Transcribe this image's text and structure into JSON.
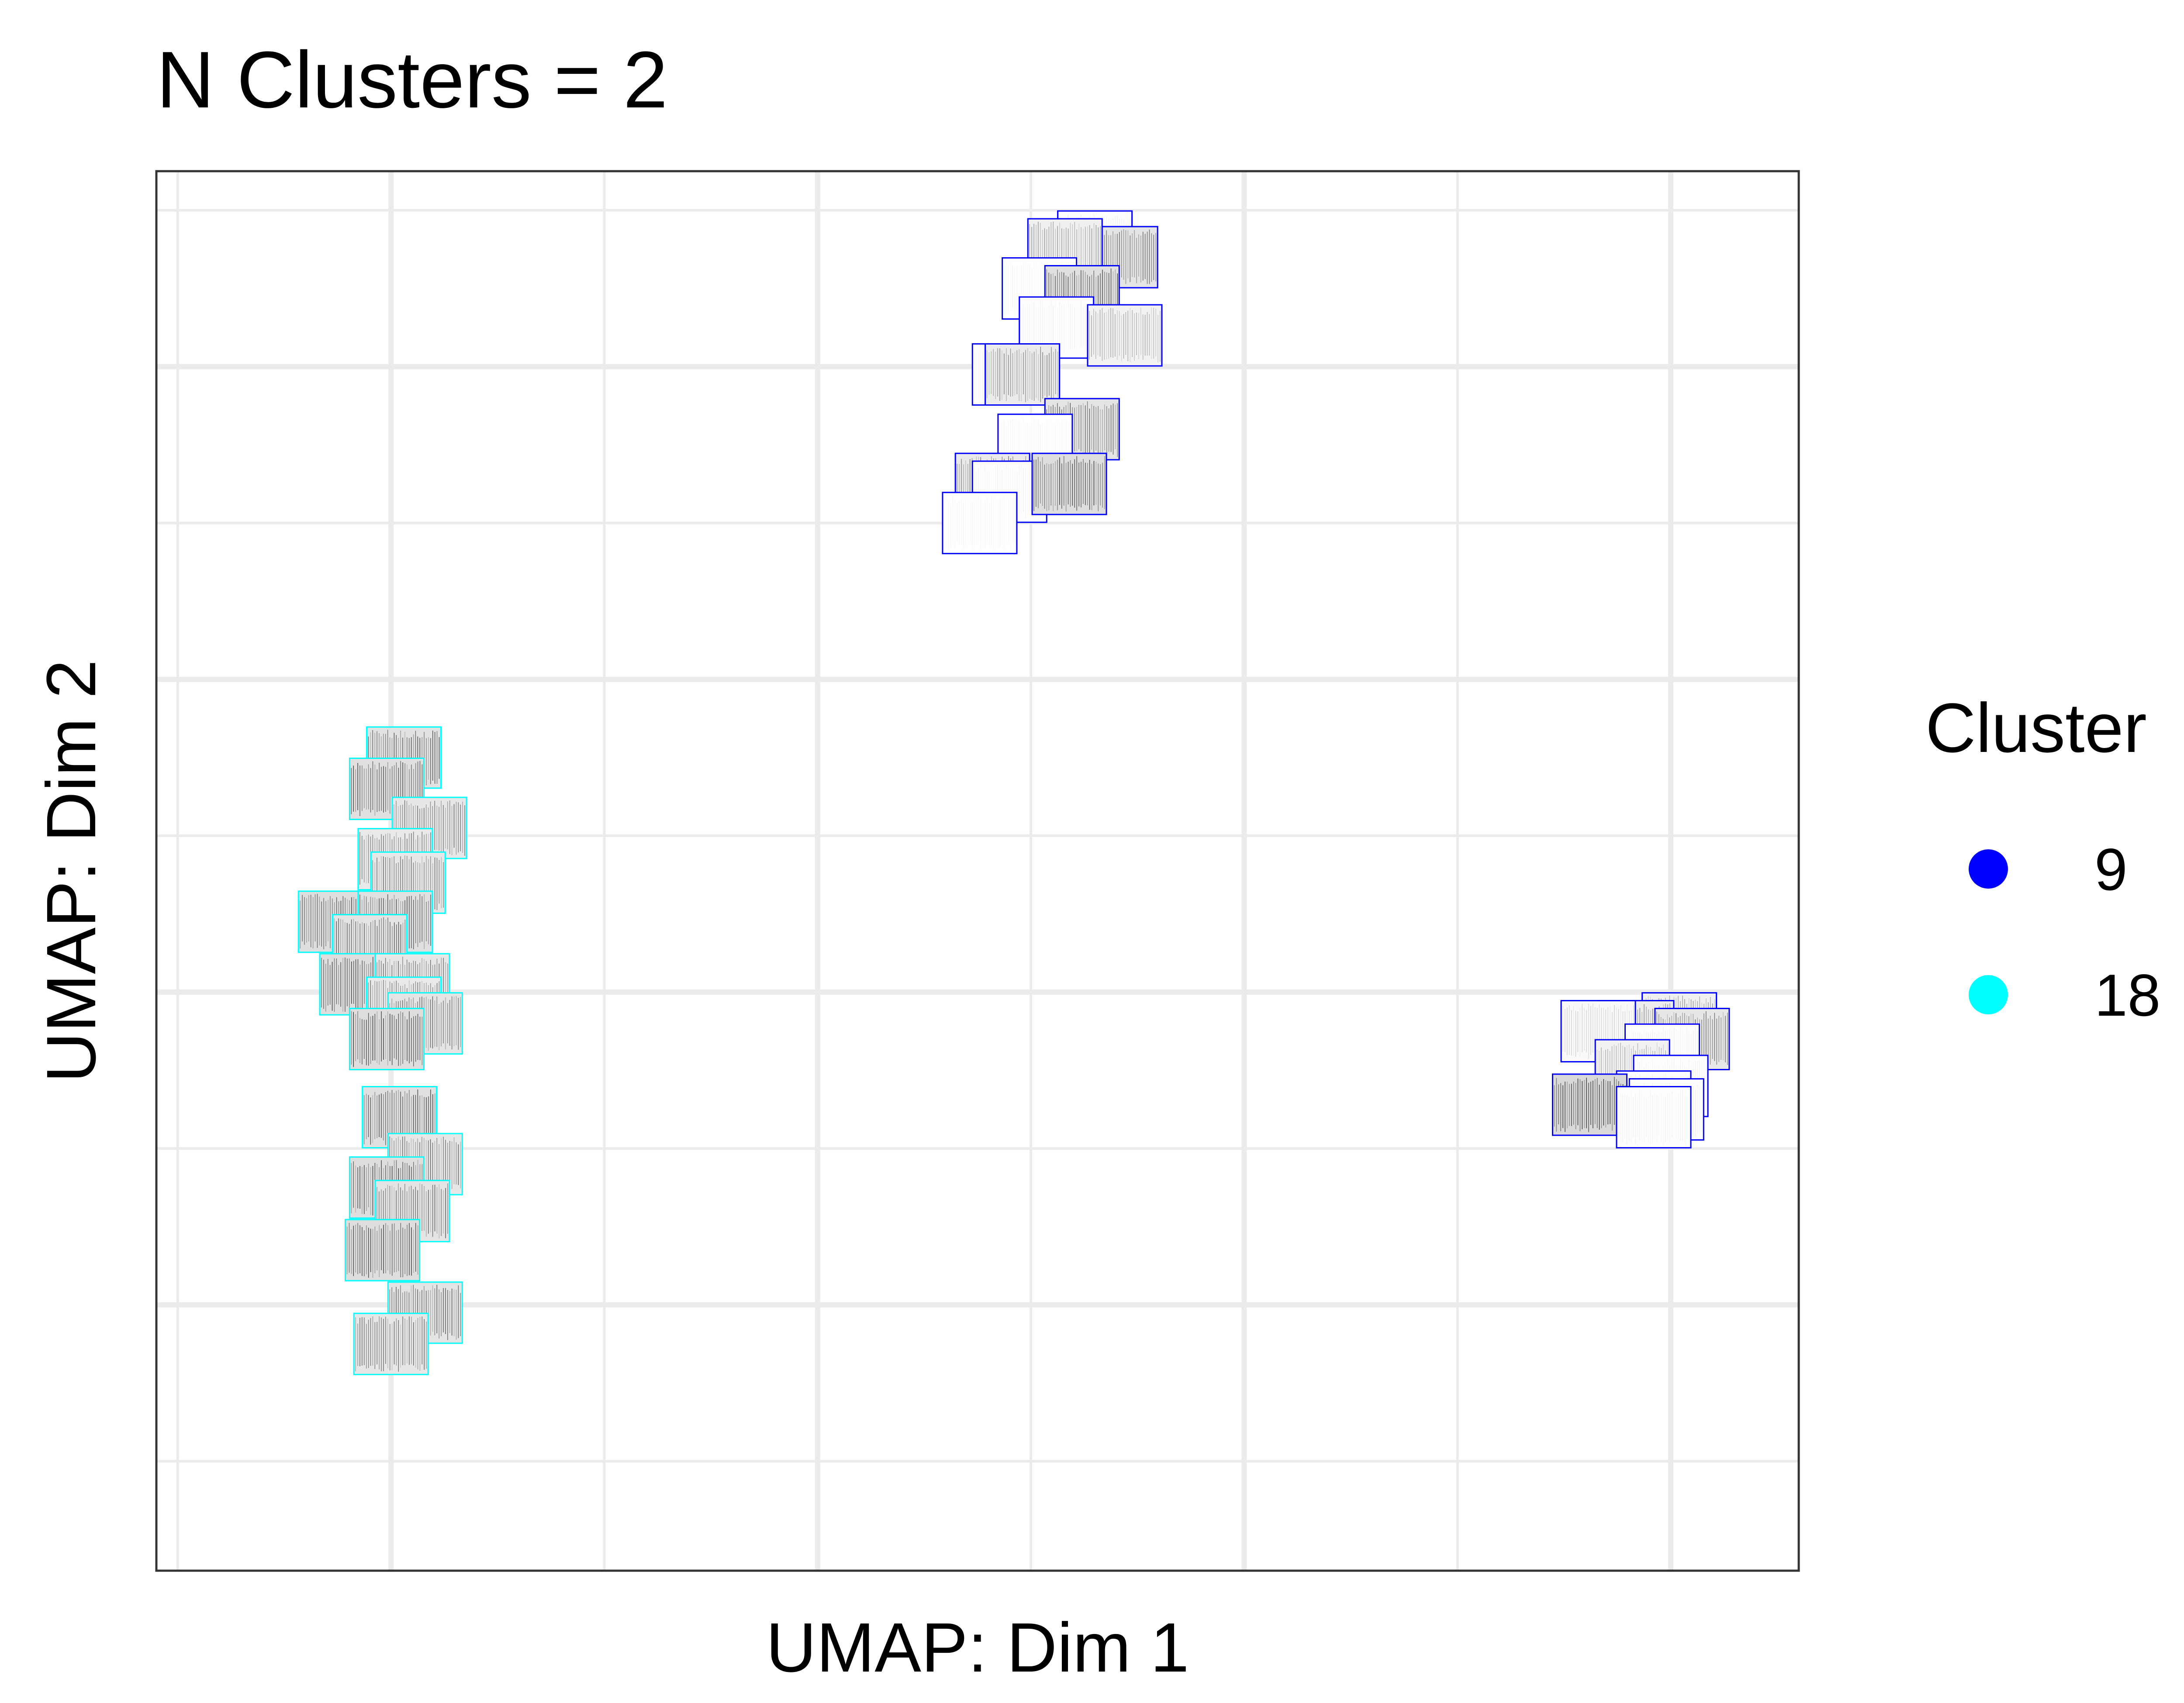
{
  "chart_data": {
    "type": "scatter",
    "title": "N Clusters = 2",
    "xlabel": "UMAP: Dim 1",
    "ylabel": "UMAP: Dim 2",
    "xlim": [
      -5.5,
      33
    ],
    "ylim": [
      -1.7,
      7.25
    ],
    "grid": true,
    "axis_ticks_labels_shown": false,
    "marker": "spectrogram-thumbnail",
    "legend": {
      "title": "Cluster",
      "position": "right",
      "entries": [
        {
          "label": "9",
          "color": "#0000ff"
        },
        {
          "label": "18",
          "color": "#00ffff"
        }
      ]
    },
    "series": [
      {
        "name": "9",
        "color": "#0000ff",
        "points": [
          {
            "x": 16.5,
            "y": 6.8,
            "shade": 0.05
          },
          {
            "x": 17.1,
            "y": 6.7,
            "shade": 0.6
          },
          {
            "x": 15.8,
            "y": 6.75,
            "shade": 0.35
          },
          {
            "x": 15.2,
            "y": 6.5,
            "shade": 0.03
          },
          {
            "x": 16.2,
            "y": 6.45,
            "shade": 0.7
          },
          {
            "x": 15.6,
            "y": 6.25,
            "shade": 0.04
          },
          {
            "x": 17.2,
            "y": 6.2,
            "shade": 0.3
          },
          {
            "x": 14.5,
            "y": 5.95,
            "shade": 0.04
          },
          {
            "x": 14.8,
            "y": 5.95,
            "shade": 0.45
          },
          {
            "x": 16.2,
            "y": 5.6,
            "shade": 0.6
          },
          {
            "x": 15.1,
            "y": 5.5,
            "shade": 0.03
          },
          {
            "x": 14.1,
            "y": 5.25,
            "shade": 0.5
          },
          {
            "x": 14.5,
            "y": 5.2,
            "shade": 0.04
          },
          {
            "x": 15.9,
            "y": 5.25,
            "shade": 0.75
          },
          {
            "x": 13.8,
            "y": 5.0,
            "shade": 0.03
          },
          {
            "x": 30.2,
            "y": 1.8,
            "shade": 0.35
          },
          {
            "x": 29.2,
            "y": 1.75,
            "shade": 0.4
          },
          {
            "x": 30.5,
            "y": 1.7,
            "shade": 0.55
          },
          {
            "x": 28.3,
            "y": 1.75,
            "shade": 0.15
          },
          {
            "x": 29.8,
            "y": 1.6,
            "shade": 0.05
          },
          {
            "x": 29.1,
            "y": 1.5,
            "shade": 0.3
          },
          {
            "x": 30.0,
            "y": 1.4,
            "shade": 0.04
          },
          {
            "x": 29.6,
            "y": 1.3,
            "shade": 0.04
          },
          {
            "x": 28.1,
            "y": 1.28,
            "shade": 0.85
          },
          {
            "x": 29.9,
            "y": 1.25,
            "shade": 0.05
          },
          {
            "x": 29.6,
            "y": 1.2,
            "shade": 0.04
          }
        ]
      },
      {
        "name": "18",
        "color": "#00ffff",
        "points": [
          {
            "x": 0.3,
            "y": 3.5,
            "shade": 0.65
          },
          {
            "x": -0.1,
            "y": 3.3,
            "shade": 0.7
          },
          {
            "x": 0.9,
            "y": 3.05,
            "shade": 0.55
          },
          {
            "x": 0.1,
            "y": 2.85,
            "shade": 0.5
          },
          {
            "x": 0.4,
            "y": 2.7,
            "shade": 0.55
          },
          {
            "x": -1.3,
            "y": 2.45,
            "shade": 0.75
          },
          {
            "x": 0.1,
            "y": 2.45,
            "shade": 0.7
          },
          {
            "x": -0.5,
            "y": 2.3,
            "shade": 0.6
          },
          {
            "x": -0.8,
            "y": 2.05,
            "shade": 0.75
          },
          {
            "x": 0.5,
            "y": 2.05,
            "shade": 0.55
          },
          {
            "x": 0.3,
            "y": 1.9,
            "shade": 0.5
          },
          {
            "x": 0.8,
            "y": 1.8,
            "shade": 0.6
          },
          {
            "x": -0.1,
            "y": 1.7,
            "shade": 0.75
          },
          {
            "x": 0.2,
            "y": 1.2,
            "shade": 0.7
          },
          {
            "x": 0.8,
            "y": 0.9,
            "shade": 0.55
          },
          {
            "x": -0.1,
            "y": 0.75,
            "shade": 0.75
          },
          {
            "x": 0.5,
            "y": 0.6,
            "shade": 0.6
          },
          {
            "x": -0.2,
            "y": 0.35,
            "shade": 0.75
          },
          {
            "x": 0.8,
            "y": -0.05,
            "shade": 0.6
          },
          {
            "x": 0.0,
            "y": -0.25,
            "shade": 0.55
          }
        ]
      }
    ]
  }
}
